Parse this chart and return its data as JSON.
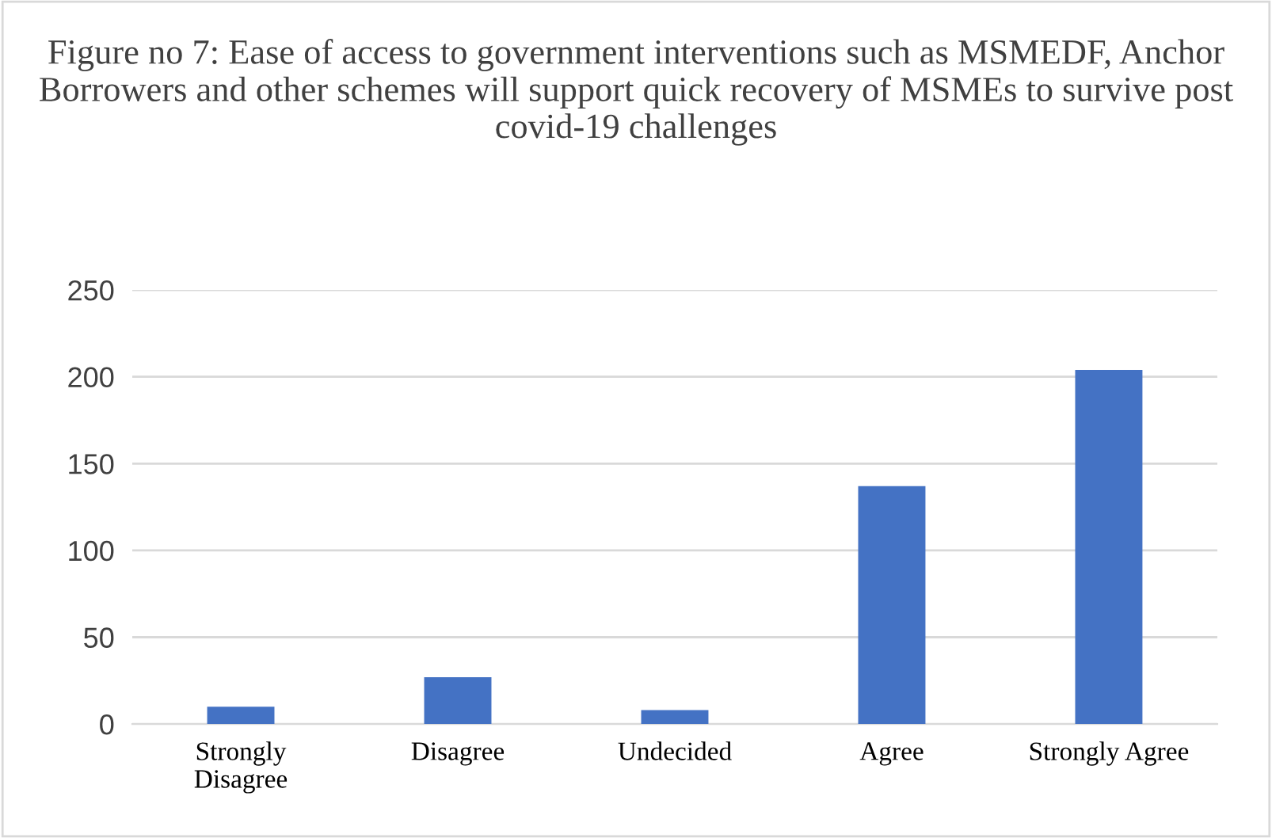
{
  "chart_data": {
    "type": "bar",
    "title": "Figure no 7: Ease of access to government interventions such as MSMEDF, Anchor Borrowers and other schemes will support quick recovery of MSMEs to survive post covid-19 challenges",
    "categories": [
      "Strongly\nDisagree",
      "Disagree",
      "Undecided",
      "Agree",
      "Strongly Agree"
    ],
    "values": [
      10,
      27,
      8,
      137,
      204
    ],
    "color": "#4472c4",
    "ylim": [
      0,
      250
    ],
    "yticks": [
      0,
      50,
      100,
      150,
      200,
      250
    ],
    "grid": "y",
    "legend": false
  }
}
